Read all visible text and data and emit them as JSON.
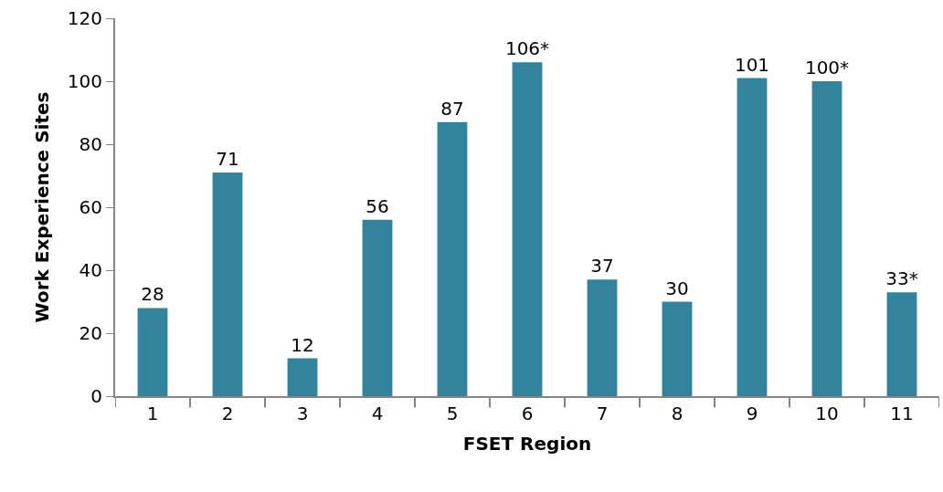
{
  "chart_data": {
    "type": "bar",
    "xlabel": "FSET Region",
    "ylabel": "Work Experience Sites",
    "categories": [
      "1",
      "2",
      "3",
      "4",
      "5",
      "6",
      "7",
      "8",
      "9",
      "10",
      "11"
    ],
    "values": [
      28,
      71,
      12,
      56,
      87,
      106,
      37,
      30,
      101,
      100,
      33
    ],
    "value_labels": [
      "28",
      "71",
      "12",
      "56",
      "87",
      "106*",
      "37",
      "30",
      "101",
      "100*",
      "33*"
    ],
    "color": "#31849b",
    "ylim": [
      0,
      120
    ],
    "yticks": [
      0,
      20,
      40,
      60,
      80,
      100,
      120
    ],
    "grid": false
  }
}
